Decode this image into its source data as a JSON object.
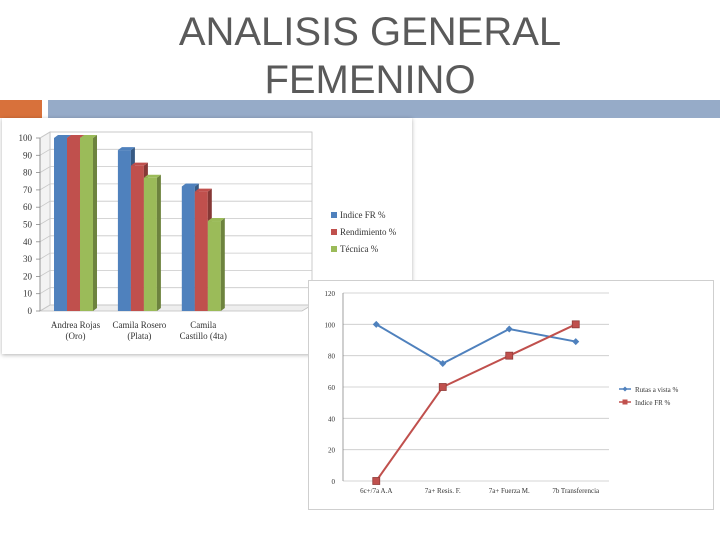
{
  "slide": {
    "title_line1": "ANALISIS GENERAL",
    "title_line2": "FEMENINO",
    "accent_colors": {
      "orange": "#d8713b",
      "blue": "#96abc8"
    }
  },
  "chart_data": [
    {
      "type": "bar",
      "categories": [
        "Andrea Rojas (Oro)",
        "Camila Rosero (Plata)",
        "Camila Castillo (4ta)"
      ],
      "category_lines": [
        [
          "Andrea Rojas",
          "(Oro)"
        ],
        [
          "Camila Rosero",
          "(Plata)"
        ],
        [
          "Camila",
          "Castillo (4ta)"
        ]
      ],
      "series": [
        {
          "name": "Indice FR %",
          "values": [
            100,
            93,
            72
          ],
          "color": "#4f81bd"
        },
        {
          "name": "Rendimiento %",
          "values": [
            100,
            84,
            69
          ],
          "color": "#c0504d"
        },
        {
          "name": "Técnica %",
          "values": [
            100,
            77,
            52
          ],
          "color": "#9bbb59"
        }
      ],
      "ylim": [
        0,
        100
      ],
      "yticks": [
        0,
        10,
        20,
        30,
        40,
        50,
        60,
        70,
        80,
        90,
        100
      ],
      "grid": true,
      "legend": "right",
      "style": "3d"
    },
    {
      "type": "line",
      "categories": [
        "6c+/7a A.A",
        "7a+ Resis. F.",
        "7a+ Fuerza M.",
        "7b Transferencia"
      ],
      "series": [
        {
          "name": "Rutas a vista %",
          "values": [
            100,
            75,
            97,
            89
          ],
          "color": "#4f81bd",
          "marker": "diamond"
        },
        {
          "name": "Indice FR %",
          "values": [
            0,
            60,
            80,
            100
          ],
          "color": "#c0504d",
          "marker": "square"
        }
      ],
      "ylim": [
        0,
        120
      ],
      "yticks": [
        0,
        20,
        40,
        60,
        80,
        100,
        120
      ],
      "grid": true,
      "legend": "right"
    }
  ]
}
